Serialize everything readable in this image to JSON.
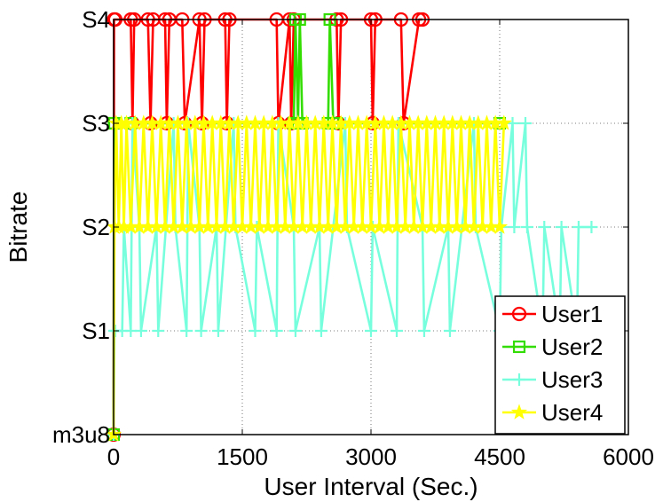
{
  "chart_data": {
    "type": "line",
    "title": "",
    "xlabel": "User Interval (Sec.)",
    "ylabel": "Bitrate",
    "xlim": [
      0,
      6000
    ],
    "ylim": [
      0,
      4
    ],
    "x_ticks": [
      0,
      1500,
      3000,
      4500,
      6000
    ],
    "x_tick_labels": [
      "0",
      "1500",
      "3000",
      "4500",
      "6000"
    ],
    "y_ticks": [
      0,
      1,
      2,
      3,
      4
    ],
    "y_tick_labels": [
      "m3u8",
      "S1",
      "S2",
      "S3",
      "S4"
    ],
    "grid": true,
    "legend_position": "bottom-right",
    "series": [
      {
        "name": "User1",
        "color": "#ff0000",
        "marker": "circle",
        "x": [
          0,
          5,
          10,
          20,
          200,
          220,
          240,
          400,
          430,
          460,
          600,
          620,
          650,
          800,
          830,
          1000,
          1030,
          1060,
          1300,
          1320,
          1350,
          1900,
          1920,
          2050,
          2070,
          2100,
          2600,
          2620,
          2650,
          3000,
          3020,
          3050,
          3350,
          3380,
          3560,
          3600
        ],
        "y": [
          0,
          4,
          4,
          4,
          4,
          3,
          4,
          4,
          3,
          4,
          4,
          3,
          4,
          4,
          3,
          4,
          3,
          4,
          4,
          3,
          4,
          4,
          3,
          4,
          3,
          4,
          4,
          3,
          4,
          4,
          3,
          4,
          4,
          3,
          4,
          4
        ]
      },
      {
        "name": "User2",
        "color": "#33dd00",
        "marker": "square",
        "x": [
          0,
          5,
          10,
          200,
          2100,
          2120,
          2150,
          2170,
          2200,
          2500,
          2520,
          2560,
          2600,
          4500
        ],
        "y": [
          0,
          3,
          3,
          3,
          3,
          4,
          3,
          4,
          3,
          3,
          4,
          3,
          3,
          3
        ]
      },
      {
        "name": "User3",
        "color": "#77ffdd",
        "marker": "plus",
        "x": [
          0,
          10,
          20,
          100,
          120,
          200,
          220,
          300,
          320,
          500,
          520,
          700,
          720,
          850,
          870,
          1000,
          1020,
          1200,
          1220,
          1400,
          1420,
          1650,
          1670,
          1900,
          1920,
          2100,
          2120,
          2400,
          2420,
          2700,
          2720,
          3000,
          3020,
          3300,
          3320,
          3600,
          3620,
          3900,
          3920,
          4200,
          4220,
          4500,
          4520,
          4650,
          4670,
          4800,
          4820,
          5000,
          5020,
          5200,
          5220,
          5400,
          5420,
          5570
        ],
        "y": [
          0,
          1,
          1,
          1,
          2,
          1,
          3,
          2,
          1,
          2,
          1,
          3,
          2,
          1,
          3,
          2,
          1,
          2,
          1,
          3,
          2,
          1,
          2,
          1,
          3,
          2,
          1,
          2,
          1,
          3,
          2,
          1,
          2,
          1,
          3,
          2,
          1,
          2,
          1,
          3,
          2,
          1,
          2,
          3,
          2,
          3,
          2,
          1,
          2,
          1,
          2,
          1,
          2,
          2
        ]
      },
      {
        "name": "User4",
        "color": "#ffff00",
        "marker": "star",
        "x": [
          0,
          10,
          30,
          60,
          90,
          120,
          150,
          200,
          250,
          300,
          350,
          400,
          450,
          500,
          550,
          600,
          650,
          700,
          750,
          800,
          850,
          900,
          950,
          1000,
          1050,
          1100,
          1150,
          1200,
          1250,
          1300,
          1350,
          1400,
          1450,
          1500,
          1550,
          1600,
          1650,
          1700,
          1750,
          1800,
          1850,
          1900,
          1950,
          2000,
          2050,
          2100,
          2150,
          2200,
          2250,
          2300,
          2350,
          2400,
          2450,
          2500,
          2550,
          2600,
          2650,
          2700,
          2750,
          2800,
          2850,
          2900,
          2950,
          3000,
          3050,
          3100,
          3150,
          3200,
          3250,
          3300,
          3350,
          3400,
          3450,
          3500,
          3550,
          3600,
          3650,
          3700,
          3750,
          3800,
          3850,
          3900,
          3950,
          4000,
          4050,
          4100,
          4150,
          4200,
          4250,
          4300,
          4350,
          4400,
          4450,
          4500,
          4550
        ],
        "y": [
          0,
          2,
          3,
          2,
          3,
          2,
          3,
          2,
          3,
          2,
          3,
          2,
          3,
          2,
          3,
          2,
          3,
          2,
          3,
          2,
          3,
          2,
          3,
          2,
          3,
          2,
          3,
          2,
          3,
          2,
          3,
          2,
          3,
          2,
          3,
          2,
          3,
          2,
          3,
          2,
          3,
          2,
          3,
          2,
          3,
          2,
          3,
          2,
          3,
          2,
          3,
          2,
          3,
          2,
          3,
          2,
          3,
          2,
          3,
          2,
          3,
          2,
          3,
          2,
          3,
          2,
          3,
          2,
          3,
          2,
          3,
          2,
          3,
          2,
          3,
          2,
          3,
          2,
          3,
          2,
          3,
          2,
          3,
          2,
          3,
          2,
          3,
          2,
          3,
          2,
          3,
          2,
          3,
          2,
          3
        ]
      }
    ]
  }
}
